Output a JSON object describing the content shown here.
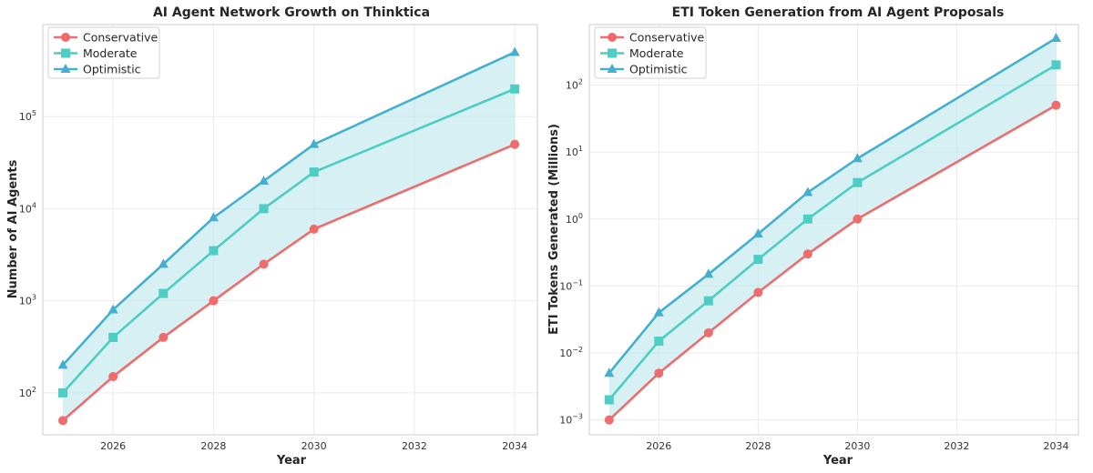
{
  "chart_data": [
    {
      "type": "line",
      "title": "AI Agent Network Growth on Thinktica",
      "xlabel": "Year",
      "ylabel": "Number of AI Agents",
      "yscale": "log",
      "xlim": [
        2024.6,
        2034.45
      ],
      "ylim": [
        35,
        1000000
      ],
      "x": [
        2025,
        2026,
        2027,
        2028,
        2029,
        2030,
        2034
      ],
      "x_ticks": [
        2026,
        2028,
        2030,
        2032,
        2034
      ],
      "y_tick_base": "10",
      "y_tick_exponents": [
        "2",
        "3",
        "4",
        "5"
      ],
      "y_tick_values": [
        100,
        1000,
        10000,
        100000
      ],
      "grid": true,
      "legend_position": "upper-left",
      "fill_between": [
        "Conservative",
        "Optimistic"
      ],
      "fill_color": "#bfe6ec",
      "series": [
        {
          "name": "Conservative",
          "color": "#f06b6b",
          "marker": "circle",
          "values": [
            50,
            150,
            400,
            1000,
            2500,
            6000,
            50000
          ]
        },
        {
          "name": "Moderate",
          "color": "#4ecdc4",
          "marker": "square",
          "values": [
            100,
            400,
            1200,
            3500,
            10000,
            25000,
            200000
          ]
        },
        {
          "name": "Optimistic",
          "color": "#45b0ce",
          "marker": "triangle",
          "values": [
            200,
            800,
            2500,
            8000,
            20000,
            50000,
            500000
          ]
        }
      ]
    },
    {
      "type": "line",
      "title": "ETI Token Generation from AI Agent Proposals",
      "xlabel": "Year",
      "ylabel": "ETI Tokens Generated (Millions)",
      "yscale": "log",
      "xlim": [
        2024.6,
        2034.45
      ],
      "ylim": [
        0.0006,
        800
      ],
      "x": [
        2025,
        2026,
        2027,
        2028,
        2029,
        2030,
        2034
      ],
      "x_ticks": [
        2026,
        2028,
        2030,
        2032,
        2034
      ],
      "y_tick_base": "10",
      "y_tick_exponents": [
        "−3",
        "−2",
        "−1",
        "0",
        "1",
        "2"
      ],
      "y_tick_values": [
        0.001,
        0.01,
        0.1,
        1,
        10,
        100
      ],
      "grid": true,
      "legend_position": "upper-left",
      "fill_between": [
        "Conservative",
        "Optimistic"
      ],
      "fill_color": "#bfe6ec",
      "series": [
        {
          "name": "Conservative",
          "color": "#f06b6b",
          "marker": "circle",
          "values": [
            0.001,
            0.005,
            0.02,
            0.08,
            0.3,
            1,
            50
          ]
        },
        {
          "name": "Moderate",
          "color": "#4ecdc4",
          "marker": "square",
          "values": [
            0.002,
            0.015,
            0.06,
            0.25,
            1,
            3.5,
            200
          ]
        },
        {
          "name": "Optimistic",
          "color": "#45b0ce",
          "marker": "triangle",
          "values": [
            0.005,
            0.04,
            0.15,
            0.6,
            2.5,
            8,
            500
          ]
        }
      ]
    }
  ]
}
